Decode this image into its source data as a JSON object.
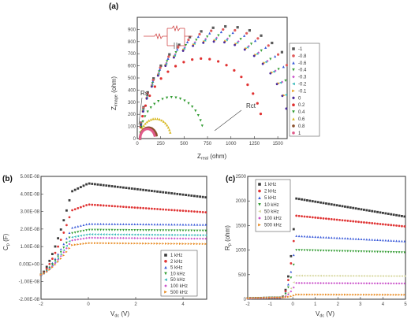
{
  "chart_data": [
    {
      "panel": "(a)",
      "type": "scatter",
      "xlabel": "Z_real (ohm)",
      "ylabel": "Z_imag (ohm)",
      "xlim": [
        0,
        1600
      ],
      "ylim": [
        0,
        1000
      ],
      "xticks": [
        0,
        250,
        500,
        750,
        1000,
        1250,
        1500
      ],
      "yticks": [
        0,
        100,
        200,
        300,
        400,
        500,
        600,
        700,
        800,
        900
      ],
      "legend_position": "right",
      "annotations": [
        "Rs",
        "Rct"
      ],
      "series": [
        {
          "name": "-1",
          "color": "#5a5a5a",
          "marker": "square",
          "r": 30,
          "R": 1850
        },
        {
          "name": "-0.8",
          "color": "#e05a5a",
          "marker": "circle",
          "r": 30,
          "R": 1800
        },
        {
          "name": "-0.6",
          "color": "#3b5bd9",
          "marker": "triangle",
          "r": 30,
          "R": 1760
        },
        {
          "name": "-0.4",
          "color": "#3aa03a",
          "marker": "triangle-down",
          "r": 30,
          "R": 1700
        },
        {
          "name": "-0.3",
          "color": "#c94fc9",
          "marker": "diamond",
          "r": 30,
          "R": 1660
        },
        {
          "name": "-0.2",
          "color": "#33b8b8",
          "marker": "triangle-left",
          "r": 30,
          "R": 1640
        },
        {
          "name": "-0.1",
          "color": "#e8a020",
          "marker": "triangle-right",
          "r": 30,
          "R": 1620
        },
        {
          "name": "0",
          "color": "#4a2a9a",
          "marker": "hexagon",
          "r": 30,
          "R": 1600
        },
        {
          "name": "0.2",
          "color": "#e03030",
          "marker": "circle",
          "r": 30,
          "R": 1320
        },
        {
          "name": "0.4",
          "color": "#2e9a2e",
          "marker": "triangle-down",
          "r": 30,
          "R": 680
        },
        {
          "name": "0.6",
          "color": "#d7b820",
          "marker": "triangle",
          "r": 30,
          "R": 330
        },
        {
          "name": "0.8",
          "color": "#8a4f2a",
          "marker": "circle",
          "r": 30,
          "R": 180
        },
        {
          "name": "1",
          "color": "#e05a8a",
          "marker": "circle",
          "r": 30,
          "R": 160
        }
      ]
    },
    {
      "panel": "(b)",
      "type": "scatter",
      "xlabel": "V_dc (V)",
      "ylabel": "C_p (F)",
      "xlim": [
        -2,
        5
      ],
      "ylim": [
        -2e-08,
        5e-08
      ],
      "xticks": [
        -2,
        0,
        2,
        4
      ],
      "yticks_labels": [
        "5.00E-08",
        "4.00E-08",
        "3.00E-08",
        "2.00E-08",
        "1.00E-08",
        "0.00E+00",
        "-1.00E-08",
        "-2.00E-08"
      ],
      "yticks": [
        5e-08,
        4e-08,
        3e-08,
        2e-08,
        1e-08,
        0,
        -1e-08,
        -2e-08
      ],
      "legend_position": "bottom-right",
      "series": [
        {
          "name": "1 kHz",
          "color": "#3c3c3c",
          "marker": "square",
          "plateau": 4.6e-08,
          "end": 3.8e-08
        },
        {
          "name": "2 kHz",
          "color": "#e03535",
          "marker": "circle",
          "plateau": 3.4e-08,
          "end": 2.95e-08
        },
        {
          "name": "5 kHz",
          "color": "#3b5bd9",
          "marker": "triangle",
          "plateau": 2.3e-08,
          "end": 2.25e-08
        },
        {
          "name": "10 kHz",
          "color": "#2e9a2e",
          "marker": "triangle-down",
          "plateau": 1.95e-08,
          "end": 1.9e-08
        },
        {
          "name": "50 kHz",
          "color": "#33b8b8",
          "marker": "triangle-left",
          "plateau": 1.7e-08,
          "end": 1.65e-08
        },
        {
          "name": "100 kHz",
          "color": "#c94fc9",
          "marker": "diamond",
          "plateau": 1.5e-08,
          "end": 1.45e-08
        },
        {
          "name": "500 kHz",
          "color": "#e88a20",
          "marker": "triangle-right",
          "plateau": 1.2e-08,
          "end": 1.15e-08
        }
      ]
    },
    {
      "panel": "(c)",
      "type": "scatter",
      "xlabel": "V_dc (V)",
      "ylabel": "R_p (ohm)",
      "xlim": [
        -2,
        5
      ],
      "ylim": [
        0,
        2500
      ],
      "xticks": [
        -2,
        -1,
        0,
        1,
        2,
        3,
        4,
        5
      ],
      "yticks": [
        0,
        500,
        1000,
        1500,
        2000,
        2500
      ],
      "legend_position": "top-left",
      "series": [
        {
          "name": "1 kHz",
          "color": "#3c3c3c",
          "marker": "square",
          "peak": 2050,
          "end": 1680
        },
        {
          "name": "2 kHz",
          "color": "#e03535",
          "marker": "circle",
          "peak": 1700,
          "end": 1480
        },
        {
          "name": "5 kHz",
          "color": "#3b5bd9",
          "marker": "triangle",
          "peak": 1290,
          "end": 1180
        },
        {
          "name": "10 kHz",
          "color": "#2e9a2e",
          "marker": "triangle-down",
          "peak": 1000,
          "end": 950
        },
        {
          "name": "50 kHz",
          "color": "#d7d7a0",
          "marker": "triangle-left",
          "peak": 480,
          "end": 470
        },
        {
          "name": "100 kHz",
          "color": "#c94fc9",
          "marker": "diamond",
          "peak": 330,
          "end": 320
        },
        {
          "name": "500 kHz",
          "color": "#e88a20",
          "marker": "triangle-right",
          "peak": 95,
          "end": 90
        }
      ]
    }
  ]
}
